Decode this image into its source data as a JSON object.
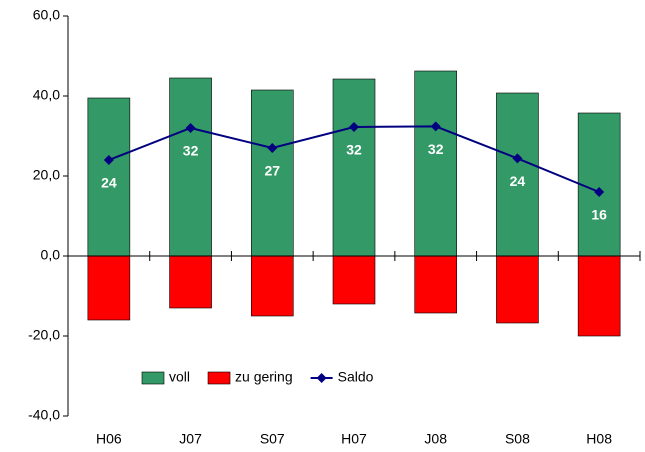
{
  "chart_data": {
    "type": "bar",
    "categories": [
      "H06",
      "J07",
      "S07",
      "H07",
      "J08",
      "S08",
      "H08"
    ],
    "series": [
      {
        "name": "voll",
        "color": "#339966",
        "values": [
          39.5,
          44.5,
          41.5,
          44.25,
          46.25,
          40.75,
          35.75
        ]
      },
      {
        "name": "zu gering",
        "color": "#ff0000",
        "values": [
          -16,
          -13,
          -15,
          -12,
          -14.25,
          -16.75,
          -20
        ]
      },
      {
        "name": "Saldo",
        "type": "line",
        "color": "#000080",
        "values": [
          24,
          32,
          27,
          32.25,
          32.4,
          24.4,
          16
        ],
        "value_labels": [
          "24",
          "32",
          "27",
          "32",
          "32",
          "24",
          "16"
        ]
      }
    ],
    "ylim": [
      -40,
      60
    ],
    "yticks": [
      {
        "value": -40,
        "label": "-40,0"
      },
      {
        "value": -20,
        "label": "-20,0"
      },
      {
        "value": 0,
        "label": "0,0"
      },
      {
        "value": 20,
        "label": "20,0"
      },
      {
        "value": 40,
        "label": "40,0"
      },
      {
        "value": 60,
        "label": "60,0"
      }
    ],
    "grid": false
  }
}
